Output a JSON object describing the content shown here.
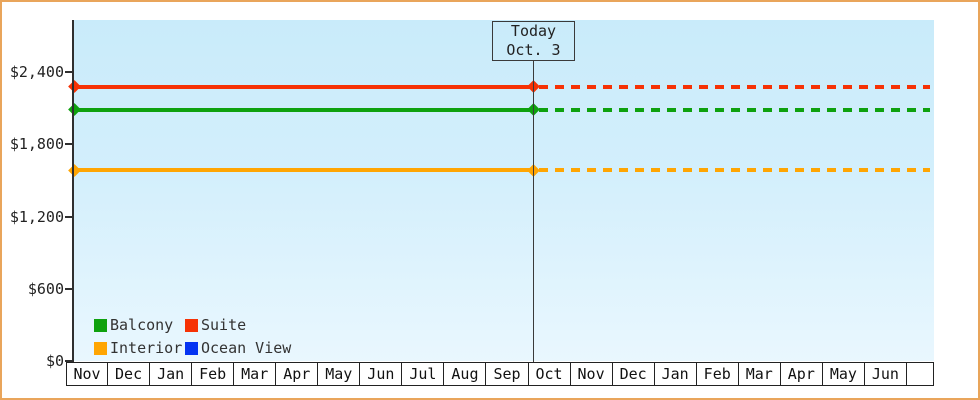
{
  "page": {
    "background_color": "#ffffff",
    "frame_border_color": "#e9a55b",
    "plot_bg_top": "#c9ebfa",
    "plot_bg_bottom": "#e9f7fe"
  },
  "today_marker": {
    "line1": "Today",
    "line2": "Oct. 3"
  },
  "y_axis": {
    "ticks": [
      {
        "label": "$0",
        "value": 0
      },
      {
        "label": "$600",
        "value": 600
      },
      {
        "label": "$1,200",
        "value": 1200
      },
      {
        "label": "$1,800",
        "value": 1800
      },
      {
        "label": "$2,400",
        "value": 2400
      }
    ]
  },
  "x_axis": {
    "cells": [
      "Nov",
      "Dec",
      "Jan",
      "Feb",
      "Mar",
      "Apr",
      "May",
      "Jun",
      "Jul",
      "Aug",
      "Sep",
      "Oct",
      "Nov",
      "Dec",
      "Jan",
      "Feb",
      "Mar",
      "Apr",
      "May",
      "Jun",
      ""
    ]
  },
  "legend": {
    "items": [
      {
        "label": "Balcony",
        "color": "#0ea10e"
      },
      {
        "label": "Suite",
        "color": "#f63205"
      },
      {
        "label": "Interior",
        "color": "#ffa502"
      },
      {
        "label": "Ocean View",
        "color": "#0433f2"
      }
    ]
  },
  "chart_data": {
    "type": "line",
    "title": "",
    "xlabel": "",
    "ylabel": "",
    "x_categories": [
      "Nov",
      "Dec",
      "Jan",
      "Feb",
      "Mar",
      "Apr",
      "May",
      "Jun",
      "Jul",
      "Aug",
      "Sep",
      "Oct",
      "Nov",
      "Dec",
      "Jan",
      "Feb",
      "Mar",
      "Apr",
      "May",
      "Jun"
    ],
    "y_ticks": [
      0,
      600,
      1200,
      1800,
      2400
    ],
    "ylim": [
      0,
      2840
    ],
    "grid": false,
    "legend_position": "bottom-left-inside",
    "annotation": {
      "label": "Today",
      "date": "Oct. 3",
      "position_between": [
        "Sep",
        "Oct"
      ]
    },
    "series": [
      {
        "name": "Suite",
        "color": "#f63205",
        "value": 2280,
        "flat": true,
        "solid_until": "Today",
        "dashed_after": true
      },
      {
        "name": "Balcony",
        "color": "#0ea10e",
        "value": 2090,
        "flat": true,
        "solid_until": "Today",
        "dashed_after": true
      },
      {
        "name": "Interior",
        "color": "#ffa502",
        "value": 1585,
        "flat": true,
        "solid_until": "Today",
        "dashed_after": true
      },
      {
        "name": "Ocean View",
        "color": "#0433f2",
        "value": null,
        "note": "in legend only, no line plotted"
      }
    ]
  }
}
